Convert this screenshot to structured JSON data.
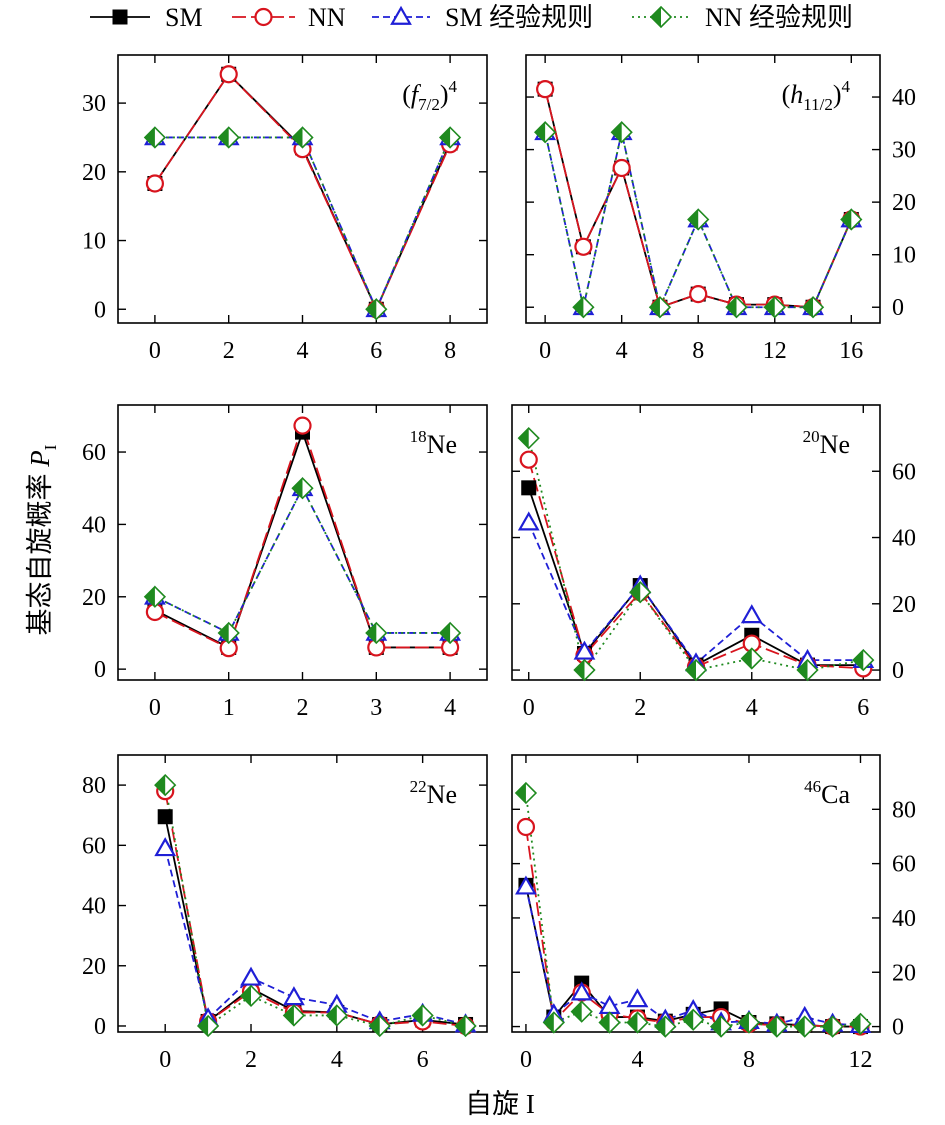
{
  "colors": {
    "SM": "#000000",
    "NN": "#d8141e",
    "SM_rule": "#1f1fd6",
    "NN_rule": "#1f8a1f"
  },
  "chart_data": {
    "type": "line",
    "xlabel": "自旋 I",
    "ylabel_main": "基态自旋概率 ",
    "ylabel_var": "P",
    "ylabel_sub": "I",
    "legend_placement": "top",
    "legend": [
      {
        "key": "SM",
        "label": "SM"
      },
      {
        "key": "NN",
        "label": "NN"
      },
      {
        "key": "SM_rule",
        "label": "SM 经验规则"
      },
      {
        "key": "NN_rule",
        "label": "NN 经验规则"
      }
    ],
    "panels": [
      {
        "id": "f72",
        "label_pre": "(",
        "label_var": "f",
        "label_sub": "7/2",
        "label_post": ")",
        "label_sup": "4",
        "x": [
          0,
          2,
          4,
          6,
          8
        ],
        "xlim": [
          -1,
          9
        ],
        "xticks": [
          0,
          2,
          4,
          6,
          8
        ],
        "ylim": [
          -2,
          37
        ],
        "yticks": [
          0,
          10,
          20,
          30
        ],
        "yaxis_side": "left",
        "series": {
          "SM": [
            18.3,
            34.2,
            23.5,
            0,
            24.2
          ],
          "NN": [
            18.3,
            34.2,
            23.3,
            0,
            24.0
          ],
          "SM_rule": [
            25,
            25,
            25,
            0,
            25
          ],
          "NN_rule": [
            25,
            25,
            25,
            0,
            25
          ]
        }
      },
      {
        "id": "h112",
        "label_pre": "(",
        "label_var": "h",
        "label_sub": "11/2",
        "label_post": ")",
        "label_sup": "4",
        "x": [
          0,
          2,
          4,
          6,
          8,
          10,
          12,
          14,
          16
        ],
        "xlim": [
          -1,
          17.5
        ],
        "xticks": [
          0,
          4,
          8,
          12,
          16
        ],
        "ylim": [
          -3,
          48
        ],
        "yticks": [
          0,
          10,
          20,
          30,
          40
        ],
        "yaxis_side": "right",
        "series": {
          "SM": [
            41.5,
            11.5,
            26.5,
            0,
            2.5,
            0.5,
            0.5,
            0,
            16.7
          ],
          "NN": [
            41.5,
            11.5,
            26.5,
            0,
            2.5,
            0.5,
            0.5,
            0,
            16.7
          ],
          "SM_rule": [
            33.3,
            0,
            33.3,
            0,
            16.7,
            0,
            0,
            0,
            16.7
          ],
          "NN_rule": [
            33.3,
            0,
            33.3,
            0,
            16.7,
            0,
            0,
            0,
            16.7
          ]
        }
      },
      {
        "id": "ne18",
        "label_sup_pre": "18",
        "label_text": "Ne",
        "x": [
          0,
          1,
          2,
          3,
          4
        ],
        "xlim": [
          -0.5,
          4.5
        ],
        "xticks": [
          0,
          1,
          2,
          3,
          4
        ],
        "ylim": [
          -3,
          73
        ],
        "yticks": [
          0,
          20,
          40,
          60
        ],
        "yaxis_side": "left",
        "series": {
          "SM": [
            16.3,
            6,
            65.5,
            6,
            6
          ],
          "NN": [
            15.8,
            5.8,
            67.3,
            6,
            6
          ],
          "SM_rule": [
            20,
            10,
            50,
            10,
            10
          ],
          "NN_rule": [
            20,
            10,
            50,
            10,
            10
          ]
        }
      },
      {
        "id": "ne20",
        "label_sup_pre": "20",
        "label_text": "Ne",
        "x": [
          0,
          1,
          2,
          3,
          4,
          5,
          6
        ],
        "xlim": [
          -0.3,
          6.3
        ],
        "xticks": [
          0,
          2,
          4,
          6
        ],
        "ylim": [
          -3,
          80
        ],
        "yticks": [
          0,
          20,
          40,
          60
        ],
        "yaxis_side": "right",
        "series": {
          "SM": [
            55,
            5,
            25.5,
            1.5,
            10.5,
            1.5,
            1.5
          ],
          "NN": [
            63.5,
            4.5,
            23.5,
            1,
            8,
            1.5,
            0.5
          ],
          "SM_rule": [
            44.5,
            5.5,
            25.5,
            2,
            16.5,
            3,
            3
          ],
          "NN_rule": [
            70,
            0,
            23.5,
            0,
            3.5,
            0,
            3
          ]
        }
      },
      {
        "id": "ne22",
        "label_sup_pre": "22",
        "label_text": "Ne",
        "x": [
          0,
          1,
          2,
          3,
          4,
          5,
          6,
          7
        ],
        "xlim": [
          -1.1,
          7.5
        ],
        "xticks": [
          0,
          2,
          4,
          6
        ],
        "ylim": [
          -2,
          90
        ],
        "yticks": [
          0,
          20,
          40,
          60,
          80
        ],
        "yaxis_side": "left",
        "series": {
          "SM": [
            69.5,
            1.5,
            12.5,
            5,
            4.5,
            0.5,
            2,
            0.5
          ],
          "NN": [
            78,
            1.5,
            11.5,
            4.5,
            4.5,
            0.5,
            1.5,
            0
          ],
          "SM_rule": [
            59,
            2.5,
            16,
            9.5,
            7,
            1.5,
            4,
            0.5
          ],
          "NN_rule": [
            80,
            0,
            10,
            3.5,
            3.5,
            0,
            3.5,
            0
          ]
        }
      },
      {
        "id": "ca46",
        "label_sup_pre": "46",
        "label_text": "Ca",
        "x": [
          0,
          1,
          2,
          3,
          4,
          5,
          6,
          7,
          8,
          9,
          10,
          11,
          12
        ],
        "xlim": [
          -0.5,
          12.7
        ],
        "xticks": [
          0,
          4,
          8,
          12
        ],
        "ylim": [
          -2,
          100
        ],
        "yticks": [
          0,
          20,
          40,
          60,
          80
        ],
        "yaxis_side": "right",
        "series": {
          "SM": [
            52,
            3.5,
            16,
            3.5,
            3.5,
            2,
            4.5,
            6.5,
            1.5,
            1,
            0.5,
            0,
            0
          ],
          "NN": [
            73.5,
            2,
            12.5,
            4.5,
            3,
            1.5,
            3.5,
            3.5,
            1,
            0.5,
            0.5,
            0,
            0
          ],
          "SM_rule": [
            51.5,
            4.5,
            12.5,
            7.5,
            10,
            2.5,
            6,
            1.5,
            2,
            1,
            3.5,
            1,
            0.5
          ],
          "NN_rule": [
            86,
            1.5,
            5.5,
            1.5,
            1.5,
            0,
            2.5,
            0,
            1.5,
            0,
            0,
            0,
            1
          ]
        }
      }
    ]
  }
}
